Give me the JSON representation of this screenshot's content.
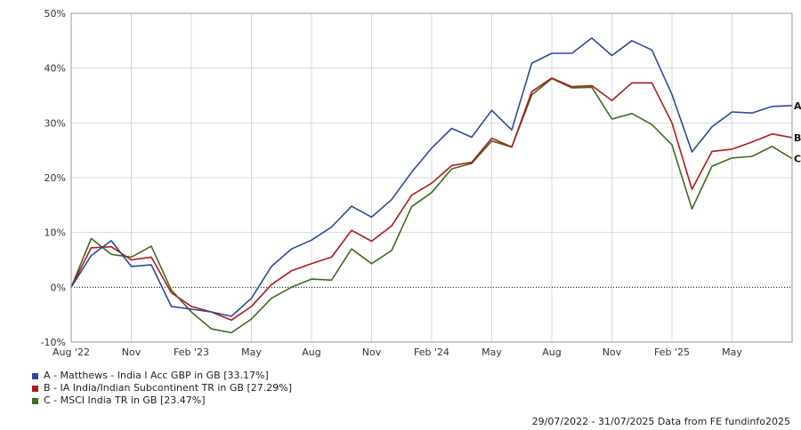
{
  "chart_data": {
    "type": "line",
    "x": [
      "Aug '22",
      "",
      "",
      "Nov",
      "",
      "",
      "Feb '23",
      "",
      "",
      "May",
      "",
      "",
      "Aug",
      "",
      "",
      "Nov",
      "",
      "",
      "Feb '24",
      "",
      "",
      "May",
      "",
      "",
      "Aug",
      "",
      "",
      "Nov",
      "",
      "",
      "Feb '25",
      "",
      "",
      "May",
      "",
      "",
      ""
    ],
    "x_tick_labels": [
      "Aug '22",
      "Nov",
      "Feb '23",
      "May",
      "Aug",
      "Nov",
      "Feb '24",
      "May",
      "Aug",
      "Nov",
      "Feb '25",
      "May"
    ],
    "ylim": [
      -10,
      50
    ],
    "y_ticks": [
      "-10%",
      "0%",
      "10%",
      "20%",
      "30%",
      "40%",
      "50%"
    ],
    "grid": true,
    "series": [
      {
        "name": "A - Matthews - India I Acc GBP in GB [33.17%]",
        "end_label": "A",
        "color": "#2a4a9c",
        "values": [
          0,
          5.8,
          8.5,
          3.8,
          4.1,
          -3.5,
          -4,
          -4.5,
          -5.3,
          -2,
          3.8,
          7,
          8.6,
          11,
          14.8,
          12.8,
          16,
          21,
          25.4,
          29,
          27.4,
          32.3,
          28.7,
          40.9,
          42.7,
          42.7,
          45.5,
          42.3,
          45,
          43.3,
          35.2,
          24.7,
          29.3,
          32,
          31.8,
          33,
          33.17
        ]
      },
      {
        "name": "B - IA India/Indian Subcontinent TR in GB [27.29%]",
        "end_label": "B",
        "color": "#b01a1a",
        "values": [
          0,
          7.2,
          7.4,
          5,
          5.5,
          -1,
          -3.5,
          -4.5,
          -6,
          -3.5,
          0.5,
          3,
          4.3,
          5.5,
          10.4,
          8.4,
          11.2,
          16.8,
          19,
          22.2,
          22.8,
          27.2,
          25.6,
          35.7,
          38.2,
          36.6,
          36.8,
          34.1,
          37.3,
          37.3,
          30,
          17.9,
          24.8,
          25.2,
          26.5,
          28,
          27.29
        ]
      },
      {
        "name": "C - MSCI India TR in GB [23.47%]",
        "end_label": "C",
        "color": "#3e6b1f",
        "values": [
          0,
          8.9,
          6,
          5.5,
          7.5,
          -0.5,
          -4.5,
          -7.6,
          -8.3,
          -5.8,
          -2,
          0,
          1.5,
          1.3,
          7,
          4.3,
          6.7,
          14.7,
          17.3,
          21.6,
          22.6,
          26.7,
          25.6,
          35.1,
          38.1,
          36.4,
          36.5,
          30.7,
          31.7,
          29.7,
          26,
          14.3,
          22.1,
          23.6,
          23.9,
          25.7,
          23.47
        ]
      }
    ],
    "footer": "29/07/2022 - 31/07/2025 Data from FE fundinfo2025"
  }
}
